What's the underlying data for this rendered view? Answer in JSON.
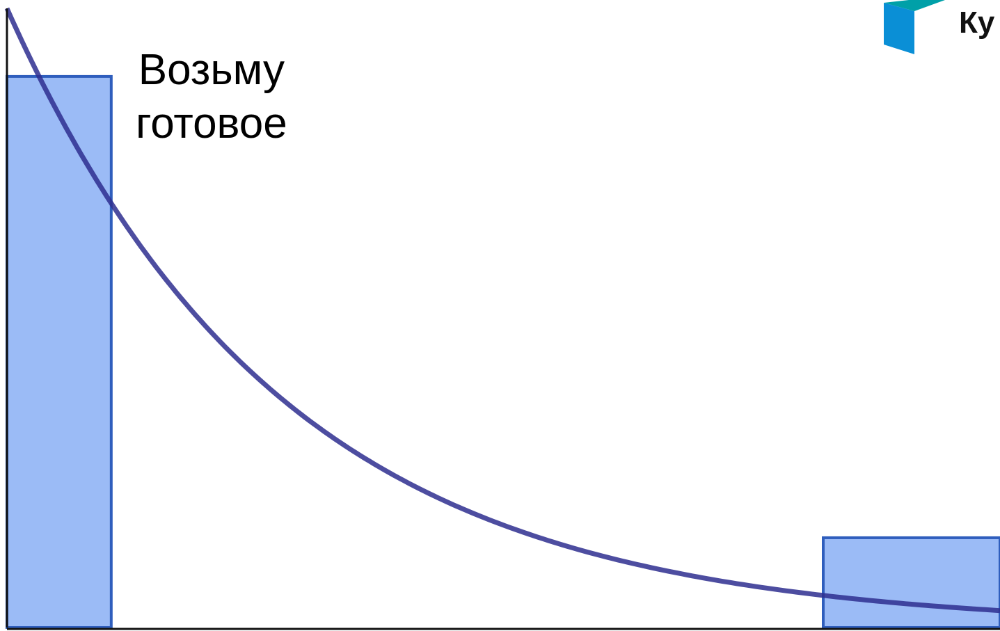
{
  "chart_data": {
    "type": "bar",
    "note_text": [
      "Возьму",
      "готовое"
    ],
    "bars": [
      {
        "x_start": 0.0,
        "x_end": 0.105,
        "value": 0.89
      },
      {
        "x_start": 0.822,
        "x_end": 1.0,
        "value": 0.145
      }
    ],
    "curve": {
      "kind": "exponential-decay",
      "start_value": 1.0,
      "decay_rate": 3.6
    },
    "xlim": [
      0,
      1
    ],
    "ylim": [
      0,
      1
    ],
    "grid": false,
    "legend": "none",
    "colors": {
      "bar_fill": "#9bbbf6",
      "bar_stroke": "#2f5ebd",
      "curve": "#2e2e8f",
      "axis": "#111111"
    }
  },
  "logo": {
    "text": "Ку",
    "icon": "cube-logo-icon",
    "colors": {
      "top": "#00a0a8",
      "side": "#0a8fd6"
    }
  }
}
